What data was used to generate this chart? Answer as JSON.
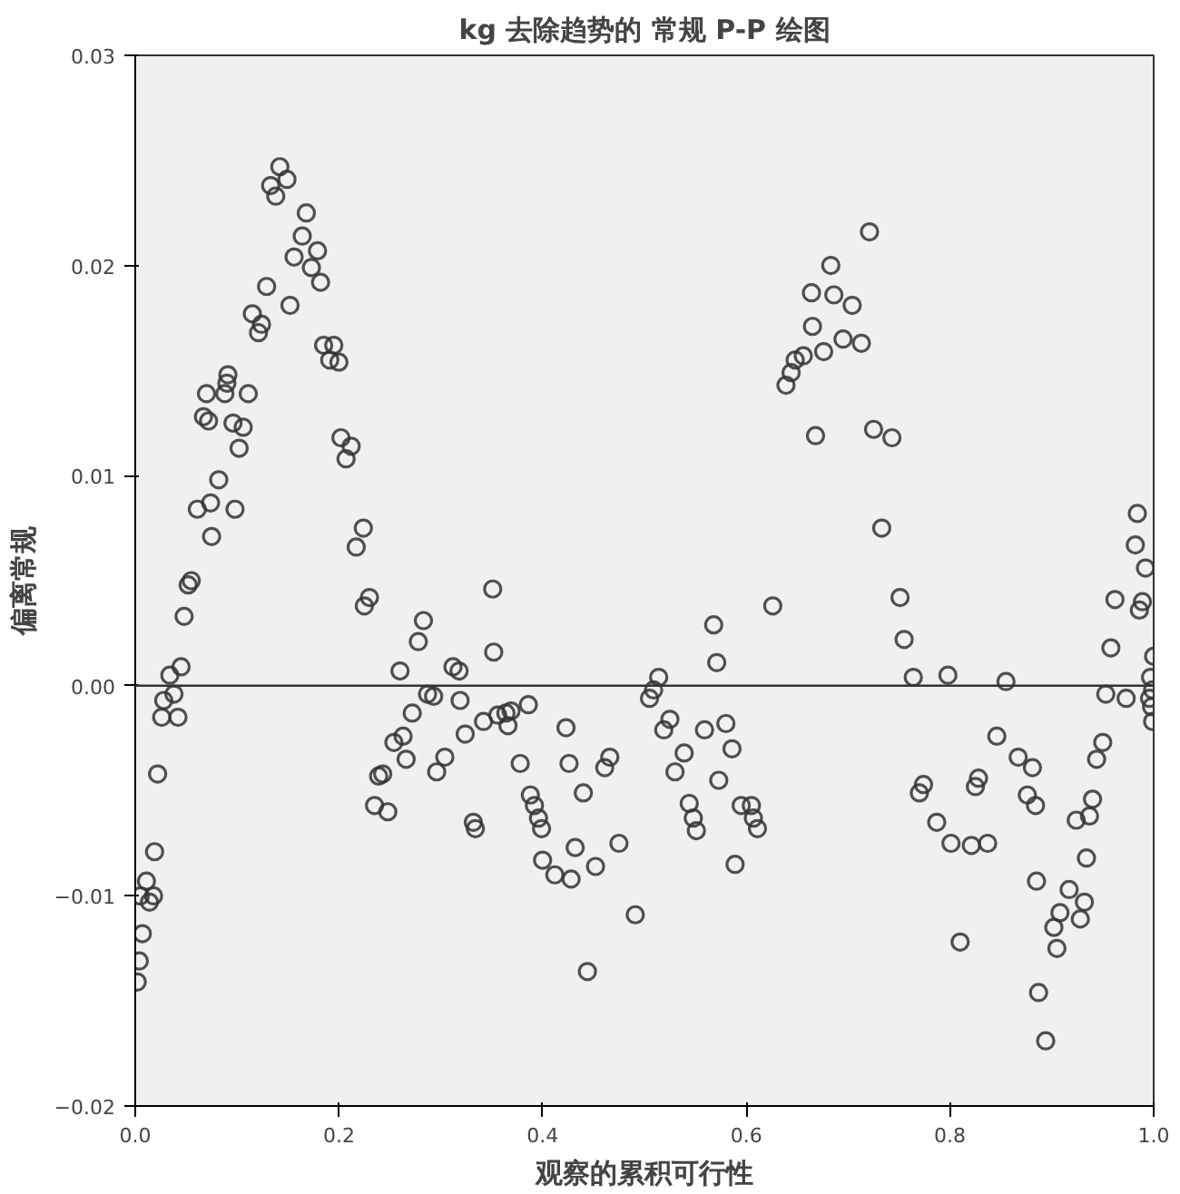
{
  "chart_data": {
    "type": "scatter",
    "title": "kg 去除趋势的 常规 P-P 绘图",
    "xlabel": "观察的累积可行性",
    "ylabel": "偏离常规",
    "marker": "circle",
    "grid": false,
    "xlim": [
      0,
      1
    ],
    "ylim": [
      -0.02,
      0.03
    ],
    "xticks": [
      {
        "value": 0,
        "label": "0.0"
      },
      {
        "value": 0.2,
        "label": "0.2"
      },
      {
        "value": 0.4,
        "label": "0.4"
      },
      {
        "value": 0.6,
        "label": "0.6"
      },
      {
        "value": 0.8,
        "label": "0.8"
      },
      {
        "value": 1,
        "label": "1.0"
      }
    ],
    "yticks": [
      -0.02,
      -0.01,
      {
        "value": 0,
        "label": "0.00"
      },
      0.01,
      0.02,
      0.03
    ],
    "ref_lines": [
      {
        "axis": "y",
        "value": 0,
        "label": null,
        "color": "#333333"
      }
    ],
    "series": [
      {
        "color": "#333333",
        "x": [
          0.002,
          0.004,
          0.007,
          0.011,
          0.005,
          0.014,
          0.018,
          0.019,
          0.022,
          0.026,
          0.028,
          0.034,
          0.038,
          0.042,
          0.045,
          0.048,
          0.052,
          0.055,
          0.061,
          0.074,
          0.075,
          0.082,
          0.098,
          0.067,
          0.072,
          0.07,
          0.088,
          0.091,
          0.09,
          0.096,
          0.106,
          0.111,
          0.102,
          0.115,
          0.121,
          0.124,
          0.129,
          0.133,
          0.138,
          0.142,
          0.149,
          0.152,
          0.156,
          0.164,
          0.168,
          0.173,
          0.179,
          0.182,
          0.185,
          0.191,
          0.195,
          0.2,
          0.202,
          0.207,
          0.212,
          0.217,
          0.224,
          0.225,
          0.23,
          0.235,
          0.239,
          0.243,
          0.248,
          0.254,
          0.263,
          0.266,
          0.26,
          0.272,
          0.278,
          0.283,
          0.287,
          0.293,
          0.296,
          0.304,
          0.312,
          0.318,
          0.319,
          0.324,
          0.332,
          0.334,
          0.342,
          0.351,
          0.352,
          0.356,
          0.364,
          0.369,
          0.386,
          0.366,
          0.378,
          0.423,
          0.426,
          0.466,
          0.461,
          0.44,
          0.388,
          0.392,
          0.396,
          0.399,
          0.4,
          0.412,
          0.428,
          0.432,
          0.452,
          0.475,
          0.491,
          0.444,
          0.514,
          0.509,
          0.505,
          0.525,
          0.519,
          0.539,
          0.53,
          0.559,
          0.58,
          0.586,
          0.573,
          0.568,
          0.571,
          0.626,
          0.544,
          0.548,
          0.551,
          0.595,
          0.605,
          0.607,
          0.611,
          0.589,
          0.721,
          0.683,
          0.664,
          0.686,
          0.704,
          0.665,
          0.695,
          0.713,
          0.676,
          0.656,
          0.648,
          0.644,
          0.639,
          0.668,
          0.725,
          0.743,
          0.733,
          0.751,
          0.755,
          0.764,
          0.798,
          0.855,
          0.846,
          0.867,
          0.881,
          0.828,
          0.825,
          0.774,
          0.77,
          0.876,
          0.884,
          0.787,
          0.801,
          0.821,
          0.837,
          0.885,
          0.81,
          0.917,
          0.932,
          0.908,
          0.928,
          0.902,
          0.905,
          0.887,
          0.894,
          0.934,
          0.924,
          0.937,
          0.94,
          0.95,
          0.944,
          0.953,
          0.973,
          0.958,
          0.962,
          0.989,
          0.986,
          0.992,
          0.982,
          0.984,
          1.0,
          0.997,
          0.999,
          0.998,
          0.999,
          0.996
        ],
        "values": [
          -0.0141,
          -0.0131,
          -0.0118,
          -0.0093,
          -0.01,
          -0.0103,
          -0.01,
          -0.0079,
          -0.0042,
          -0.0015,
          -0.0007,
          0.0005,
          -0.0004,
          -0.0015,
          0.0009,
          0.0033,
          0.0048,
          0.005,
          0.0084,
          0.0087,
          0.0071,
          0.0098,
          0.0084,
          0.0128,
          0.0126,
          0.0139,
          0.0139,
          0.0148,
          0.0144,
          0.0125,
          0.0123,
          0.0139,
          0.0113,
          0.0177,
          0.0168,
          0.0172,
          0.019,
          0.0238,
          0.0233,
          0.0247,
          0.0241,
          0.0181,
          0.0204,
          0.0214,
          0.0225,
          0.0199,
          0.0207,
          0.0192,
          0.0162,
          0.0155,
          0.0162,
          0.0154,
          0.0118,
          0.0108,
          0.0114,
          0.0066,
          0.0075,
          0.0038,
          0.0042,
          -0.0057,
          -0.0043,
          -0.0042,
          -0.006,
          -0.0027,
          -0.0024,
          -0.0035,
          0.0007,
          -0.0013,
          0.0021,
          0.0031,
          -0.0004,
          -0.0005,
          -0.0041,
          -0.0034,
          0.0009,
          0.0007,
          -0.0007,
          -0.0023,
          -0.0065,
          -0.0068,
          -0.0017,
          0.0046,
          0.0016,
          -0.0014,
          -0.0013,
          -0.0012,
          -0.0009,
          -0.0019,
          -0.0037,
          -0.002,
          -0.0037,
          -0.0034,
          -0.0039,
          -0.0051,
          -0.0052,
          -0.0057,
          -0.0063,
          -0.0068,
          -0.0083,
          -0.009,
          -0.0092,
          -0.0077,
          -0.0086,
          -0.0075,
          -0.0109,
          -0.0136,
          0.0004,
          -0.0002,
          -0.0006,
          -0.0016,
          -0.0021,
          -0.0032,
          -0.0041,
          -0.0021,
          -0.0018,
          -0.003,
          -0.0045,
          0.0029,
          0.0011,
          0.0038,
          -0.0056,
          -0.0063,
          -0.0069,
          -0.0057,
          -0.0057,
          -0.0063,
          -0.0068,
          -0.0085,
          0.0216,
          0.02,
          0.0187,
          0.0186,
          0.0181,
          0.0171,
          0.0165,
          0.0163,
          0.0159,
          0.0157,
          0.0155,
          0.0149,
          0.0143,
          0.0119,
          0.0122,
          0.0118,
          0.0075,
          0.0042,
          0.0022,
          0.0004,
          0.0005,
          0.0002,
          -0.0024,
          -0.0034,
          -0.0039,
          -0.0044,
          -0.0048,
          -0.0047,
          -0.0051,
          -0.0052,
          -0.0057,
          -0.0065,
          -0.0075,
          -0.0076,
          -0.0075,
          -0.0093,
          -0.0122,
          -0.0097,
          -0.0103,
          -0.0108,
          -0.0111,
          -0.0115,
          -0.0125,
          -0.0146,
          -0.0169,
          -0.0082,
          -0.0064,
          -0.0062,
          -0.0054,
          -0.0027,
          -0.0035,
          -0.0004,
          -0.0006,
          0.0018,
          0.0041,
          0.004,
          0.0036,
          0.0056,
          0.0067,
          0.0082,
          0.0014,
          0.0004,
          -0.0002,
          -0.001,
          -0.0017,
          -0.0006
        ]
      }
    ]
  }
}
